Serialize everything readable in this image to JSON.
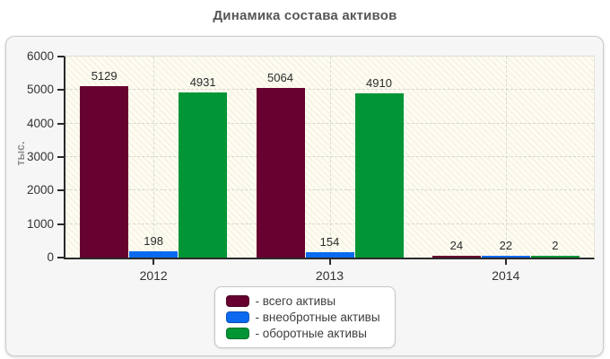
{
  "page": {
    "background": "#ffffff",
    "panel_background": "#f6f6f6"
  },
  "chart_data": {
    "type": "bar",
    "title": "Динамика состава активов",
    "ylabel": "тыс.",
    "xlabel": "",
    "ylim": [
      0,
      6000
    ],
    "yticks": [
      0,
      1000,
      2000,
      3000,
      4000,
      5000,
      6000
    ],
    "categories": [
      "2012",
      "2013",
      "2014"
    ],
    "series": [
      {
        "name": "- всего активы",
        "color": "#67012f",
        "values": [
          5129,
          5064,
          24
        ]
      },
      {
        "name": "- внеобротные активы",
        "color": "#0b6af0",
        "values": [
          198,
          154,
          22
        ]
      },
      {
        "name": "- оборотные активы",
        "color": "#029536",
        "values": [
          4931,
          4910,
          2
        ]
      }
    ],
    "legend_position": "bottom-center",
    "grid": "dashed",
    "plot_background": "#fffdf3",
    "axis_color": "#2a2a2a"
  }
}
